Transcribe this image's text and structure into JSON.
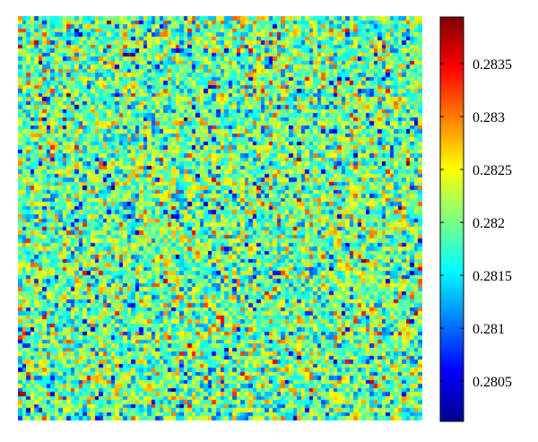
{
  "chart_data": {
    "type": "heatmap",
    "title": "",
    "xlabel": "",
    "ylabel": "",
    "grid_rows": 100,
    "grid_cols": 100,
    "colormap": "jet",
    "value_range": [
      0.28012,
      0.28394
    ],
    "data_description": "random noise field; most cells near 0.2818-0.2822, scattered lows near 0.2805 and highs near 0.2832",
    "colorbar": {
      "ticks": [
        0.2805,
        0.281,
        0.2815,
        0.282,
        0.2825,
        0.283,
        0.2835
      ],
      "tick_labels": [
        "0.2805",
        "0.281",
        "0.2815",
        "0.282",
        "0.2825",
        "0.283",
        "0.2835"
      ]
    },
    "colormap_stops": [
      "#00008f",
      "#0000ff",
      "#00ffff",
      "#ffff00",
      "#ff0000",
      "#800000"
    ]
  }
}
